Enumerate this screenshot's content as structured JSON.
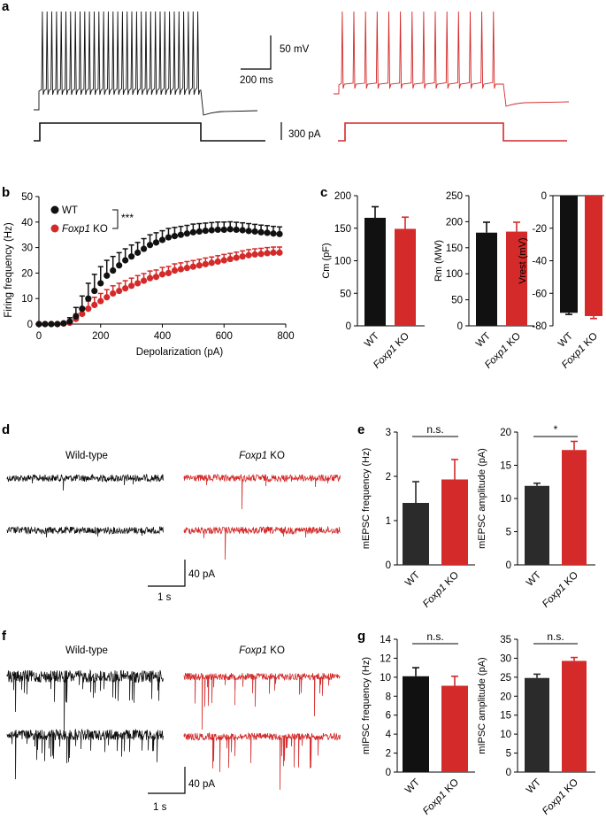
{
  "colors": {
    "wt": "#111111",
    "ko": "#d42a2a",
    "wt_bar": "#2b2b2b"
  },
  "panel_letters": {
    "a": "a",
    "b": "b",
    "c": "c",
    "d": "d",
    "e": "e",
    "f": "f",
    "g": "g"
  },
  "panel_a": {
    "scale_mv": "50 mV",
    "scale_ms": "200 ms",
    "scale_pa": "300 pA"
  },
  "panel_d": {
    "wt_label": "Wild-type",
    "ko_label_gene": "Foxp1",
    "ko_label_suffix": " KO",
    "scale_pa": "40 pA",
    "scale_s": "1 s"
  },
  "panel_f": {
    "wt_label": "Wild-type",
    "ko_label_gene": "Foxp1",
    "ko_label_suffix": " KO",
    "scale_pa": "40 pA",
    "scale_s": "1 s"
  },
  "chart_data": [
    {
      "id": "b",
      "type": "scatter",
      "xlabel": "Depolarization (pA)",
      "ylabel": "Firing frequency (Hz)",
      "xlim": [
        0,
        800
      ],
      "ylim": [
        0,
        50
      ],
      "xticks": [
        "0",
        "200",
        "400",
        "600",
        "800"
      ],
      "yticks": [
        "0",
        "10",
        "20",
        "30",
        "40",
        "50"
      ],
      "legend": {
        "wt": "WT",
        "ko_gene": "Foxp1",
        "ko_suffix": " KO",
        "sig": "***",
        "position": "top-left"
      },
      "x": [
        0,
        20,
        40,
        60,
        80,
        100,
        120,
        140,
        160,
        180,
        200,
        220,
        240,
        260,
        280,
        300,
        320,
        340,
        360,
        380,
        400,
        420,
        440,
        460,
        480,
        500,
        520,
        540,
        560,
        580,
        600,
        620,
        640,
        660,
        680,
        700,
        720,
        740,
        760,
        780
      ],
      "series": [
        {
          "name": "WT",
          "values": [
            0,
            0,
            0,
            0,
            0.3,
            1,
            3,
            6,
            10,
            13,
            16,
            19,
            21,
            23,
            25,
            26.5,
            28,
            29.5,
            31,
            32,
            33,
            34,
            34.5,
            35,
            35.5,
            36,
            36.3,
            36.6,
            36.8,
            37,
            37,
            37.2,
            37,
            36.8,
            36.5,
            36.3,
            36,
            35.8,
            35.5,
            35.3
          ],
          "errors": [
            0,
            0,
            0,
            0,
            0.5,
            1.5,
            3.5,
            5,
            6,
            6.5,
            6.5,
            6,
            5.5,
            5,
            4.5,
            4.5,
            4,
            4,
            4,
            3.8,
            3.6,
            3.5,
            3.4,
            3.3,
            3.2,
            3.2,
            3.1,
            3,
            3,
            3,
            3,
            2.9,
            2.9,
            2.9,
            2.9,
            2.8,
            2.8,
            2.8,
            2.8,
            2.8
          ]
        },
        {
          "name": "Foxp1 KO",
          "values": [
            0,
            0,
            0,
            0,
            0.2,
            0.5,
            2,
            4,
            6,
            7.5,
            9,
            10.5,
            12,
            13,
            14,
            15,
            16,
            17,
            18,
            18.5,
            19.5,
            20,
            21,
            21.5,
            22,
            22.5,
            23,
            23.5,
            24,
            24.5,
            25,
            25.5,
            26,
            26.5,
            27,
            27.3,
            27.5,
            27.8,
            28,
            28
          ],
          "errors": [
            0,
            0,
            0,
            0,
            0.3,
            0.8,
            2,
            2.5,
            3,
            3,
            3,
            3,
            3,
            3,
            3,
            3,
            3,
            2.8,
            2.8,
            2.7,
            2.7,
            2.6,
            2.6,
            2.5,
            2.5,
            2.4,
            2.4,
            2.4,
            2.3,
            2.3,
            2.3,
            2.2,
            2.2,
            2.2,
            2.2,
            2.2,
            2.2,
            2.2,
            2.2,
            2.2
          ]
        }
      ]
    },
    {
      "id": "c1",
      "type": "bar",
      "ylabel": "Cm (pF)",
      "ylim": [
        0,
        200
      ],
      "yticks": [
        "0",
        "50",
        "100",
        "150",
        "200"
      ],
      "categories": [
        "WT",
        "Foxp1 KO"
      ],
      "values": [
        166,
        149
      ],
      "errors": [
        17,
        18
      ]
    },
    {
      "id": "c2",
      "type": "bar",
      "ylabel": "Rm (MW)",
      "ylim": [
        0,
        250
      ],
      "yticks": [
        "0",
        "50",
        "100",
        "150",
        "200",
        "250"
      ],
      "categories": [
        "WT",
        "Foxp1 KO"
      ],
      "values": [
        179,
        181
      ],
      "errors": [
        20,
        18
      ]
    },
    {
      "id": "c3",
      "type": "bar",
      "ylabel": "Vrest (mV)",
      "ylim": [
        -80,
        0
      ],
      "yticks": [
        "0",
        "-20",
        "-40",
        "-60",
        "-80"
      ],
      "categories": [
        "WT",
        "Foxp1 KO"
      ],
      "values": [
        -72,
        -74
      ],
      "errors": [
        1,
        1.5
      ]
    },
    {
      "id": "e1",
      "type": "bar",
      "ylabel": "mEPSC frequency (Hz)",
      "ylim": [
        0,
        3
      ],
      "yticks": [
        "0",
        "1",
        "2",
        "3"
      ],
      "categories": [
        "WT",
        "Foxp1 KO"
      ],
      "values": [
        1.4,
        1.93
      ],
      "errors": [
        0.48,
        0.45
      ],
      "sig": "n.s."
    },
    {
      "id": "e2",
      "type": "bar",
      "ylabel": "mEPSC amplitude (pA)",
      "ylim": [
        0,
        20
      ],
      "yticks": [
        "0",
        "5",
        "10",
        "15",
        "20"
      ],
      "categories": [
        "WT",
        "Foxp1 KO"
      ],
      "values": [
        11.9,
        17.3
      ],
      "errors": [
        0.4,
        1.3
      ],
      "sig": "*"
    },
    {
      "id": "g1",
      "type": "bar",
      "ylabel": "mIPSC frequency (Hz)",
      "ylim": [
        0,
        14
      ],
      "yticks": [
        "0",
        "2",
        "4",
        "6",
        "8",
        "10",
        "12",
        "14"
      ],
      "categories": [
        "WT",
        "Foxp1 KO"
      ],
      "values": [
        10.1,
        9.1
      ],
      "errors": [
        0.9,
        1.0
      ],
      "sig": "n.s."
    },
    {
      "id": "g2",
      "type": "bar",
      "ylabel": "mIPSC amplitude (pA)",
      "ylim": [
        0,
        35
      ],
      "yticks": [
        "0",
        "5",
        "10",
        "15",
        "20",
        "25",
        "30",
        "35"
      ],
      "categories": [
        "WT",
        "Foxp1 KO"
      ],
      "values": [
        24.8,
        29.3
      ],
      "errors": [
        1.0,
        0.9
      ],
      "sig": "n.s."
    }
  ]
}
